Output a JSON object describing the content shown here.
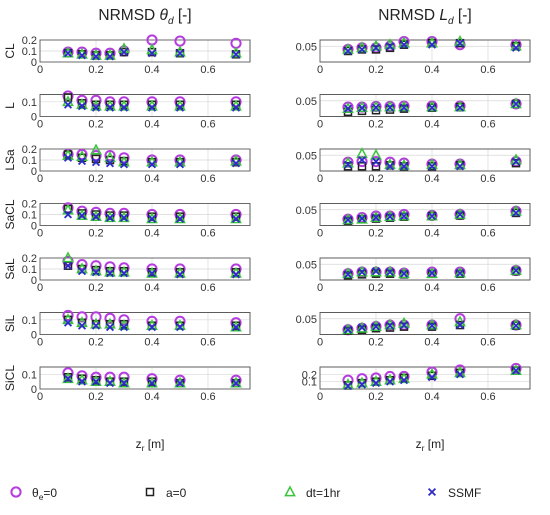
{
  "figure": {
    "legend": [
      {
        "id": "theta",
        "label": "θe=0",
        "label_main": "θ",
        "label_sub": "e",
        "label_rest": "=0",
        "marker": "circle",
        "color": "#B63CE0"
      },
      {
        "id": "a0",
        "label": "a=0",
        "marker": "square",
        "color": "#222222"
      },
      {
        "id": "dt",
        "label": "dt=1hr",
        "marker": "triangle",
        "color": "#39C43A"
      },
      {
        "id": "ssmf",
        "label": "SSMF",
        "marker": "x",
        "color": "#2B2BC8"
      }
    ]
  },
  "chart_data": [
    {
      "type": "scatter",
      "column_title": "NRMSD θd [-]",
      "title_main": "NRMSD ",
      "title_sym": "θ",
      "title_sub": "d",
      "title_rest": " [-]",
      "xlabel": "zr [m]",
      "xlabel_main": "z",
      "xlabel_sub": "r",
      "xlabel_rest": " [m]",
      "xlim": [
        0,
        0.75
      ],
      "xticks": [
        "0",
        "0.2",
        "0.4",
        "0.6"
      ],
      "x": [
        0.1,
        0.15,
        0.2,
        0.25,
        0.3,
        0.4,
        0.5,
        0.7
      ],
      "grid": true,
      "panels": [
        {
          "ylabel": "CL",
          "ylim": [
            0,
            0.2
          ],
          "yticks": [
            "0",
            "0.1",
            "0.2"
          ],
          "series": {
            "theta": [
              0.09,
              0.09,
              0.08,
              0.08,
              0.1,
              0.2,
              0.19,
              0.17
            ],
            "a0": [
              0.08,
              0.07,
              0.06,
              0.06,
              0.09,
              0.09,
              0.08,
              0.07
            ],
            "dt": [
              0.08,
              0.07,
              0.06,
              0.06,
              0.12,
              0.11,
              0.09,
              0.08
            ],
            "ssmf": [
              0.08,
              0.06,
              0.05,
              0.05,
              0.09,
              0.08,
              0.08,
              0.07
            ]
          }
        },
        {
          "ylabel": "L",
          "ylim": [
            0,
            0.15
          ],
          "yticks": [
            "0",
            "0.1"
          ],
          "series": {
            "theta": [
              0.14,
              0.11,
              0.11,
              0.1,
              0.1,
              0.1,
              0.1,
              0.1
            ],
            "a0": [
              0.13,
              0.09,
              0.08,
              0.08,
              0.08,
              0.08,
              0.08,
              0.08
            ],
            "dt": [
              0.1,
              0.08,
              0.07,
              0.07,
              0.07,
              0.07,
              0.07,
              0.07
            ],
            "ssmf": [
              0.08,
              0.07,
              0.06,
              0.06,
              0.06,
              0.06,
              0.06,
              0.06
            ]
          }
        },
        {
          "ylabel": "LSa",
          "ylim": [
            0,
            0.2
          ],
          "yticks": [
            "0",
            "0.1",
            "0.2"
          ],
          "series": {
            "theta": [
              0.15,
              0.15,
              0.14,
              0.14,
              0.12,
              0.1,
              0.1,
              0.1
            ],
            "a0": [
              0.15,
              0.12,
              0.11,
              0.1,
              0.09,
              0.08,
              0.08,
              0.08
            ],
            "dt": [
              0.14,
              0.13,
              0.19,
              0.12,
              0.08,
              0.08,
              0.08,
              0.09
            ],
            "ssmf": [
              0.12,
              0.09,
              0.08,
              0.07,
              0.06,
              0.06,
              0.06,
              0.07
            ]
          }
        },
        {
          "ylabel": "SaCL",
          "ylim": [
            0,
            0.2
          ],
          "yticks": [
            "0",
            "0.1",
            "0.2"
          ],
          "series": {
            "theta": [
              0.16,
              0.13,
              0.12,
              0.11,
              0.11,
              0.1,
              0.1,
              0.1
            ],
            "a0": [
              0.15,
              0.11,
              0.1,
              0.09,
              0.09,
              0.08,
              0.08,
              0.08
            ],
            "dt": [
              0.14,
              0.09,
              0.08,
              0.07,
              0.07,
              0.06,
              0.06,
              0.06
            ],
            "ssmf": [
              0.1,
              0.09,
              0.08,
              0.07,
              0.07,
              0.06,
              0.06,
              0.06
            ]
          }
        },
        {
          "ylabel": "SaL",
          "ylim": [
            0,
            0.2
          ],
          "yticks": [
            "0",
            "0.1",
            "0.2"
          ],
          "series": {
            "theta": [
              0.17,
              0.14,
              0.13,
              0.12,
              0.11,
              0.1,
              0.1,
              0.1
            ],
            "a0": [
              0.13,
              0.1,
              0.09,
              0.08,
              0.08,
              0.07,
              0.07,
              0.07
            ],
            "dt": [
              0.2,
              0.1,
              0.08,
              0.07,
              0.07,
              0.06,
              0.06,
              0.06
            ],
            "ssmf": [
              0.13,
              0.08,
              0.07,
              0.06,
              0.06,
              0.06,
              0.05,
              0.05
            ]
          }
        },
        {
          "ylabel": "SiL",
          "ylim": [
            0,
            0.15
          ],
          "yticks": [
            "0",
            "0.1"
          ],
          "series": {
            "theta": [
              0.13,
              0.12,
              0.12,
              0.11,
              0.1,
              0.09,
              0.09,
              0.08
            ],
            "a0": [
              0.1,
              0.08,
              0.07,
              0.07,
              0.07,
              0.06,
              0.06,
              0.06
            ],
            "dt": [
              0.1,
              0.08,
              0.07,
              0.07,
              0.06,
              0.06,
              0.06,
              0.05
            ],
            "ssmf": [
              0.08,
              0.06,
              0.06,
              0.05,
              0.05,
              0.05,
              0.05,
              0.05
            ]
          }
        },
        {
          "ylabel": "SiCL",
          "ylim": [
            0,
            0.15
          ],
          "yticks": [
            "0",
            "0.1"
          ],
          "series": {
            "theta": [
              0.11,
              0.09,
              0.08,
              0.08,
              0.08,
              0.07,
              0.06,
              0.06
            ],
            "a0": [
              0.08,
              0.07,
              0.06,
              0.05,
              0.05,
              0.05,
              0.04,
              0.04
            ],
            "dt": [
              0.07,
              0.06,
              0.05,
              0.05,
              0.04,
              0.04,
              0.04,
              0.04
            ],
            "ssmf": [
              0.07,
              0.05,
              0.05,
              0.04,
              0.04,
              0.04,
              0.04,
              0.04
            ]
          }
        }
      ]
    },
    {
      "type": "scatter",
      "column_title": "NRMSD Ld [-]",
      "title_main": "NRMSD ",
      "title_sym": "L",
      "title_sub": "d",
      "title_rest": " [-]",
      "xlabel": "zr [m]",
      "xlabel_main": "z",
      "xlabel_sub": "r",
      "xlabel_rest": " [m]",
      "xlim": [
        0,
        0.75
      ],
      "xticks": [
        "0",
        "0.2",
        "0.4",
        "0.6"
      ],
      "x": [
        0.1,
        0.15,
        0.2,
        0.25,
        0.3,
        0.4,
        0.5,
        0.7
      ],
      "grid": true,
      "panels": [
        {
          "ylabel": "",
          "ylim": [
            0,
            0.07
          ],
          "yticks": [
            "0.05"
          ],
          "series": {
            "theta": [
              0.04,
              0.045,
              0.045,
              0.05,
              0.065,
              0.065,
              0.055,
              0.055
            ],
            "a0": [
              0.035,
              0.04,
              0.04,
              0.045,
              0.055,
              0.06,
              0.06,
              0.05
            ],
            "dt": [
              0.04,
              0.045,
              0.05,
              0.055,
              0.06,
              0.06,
              0.065,
              0.05
            ],
            "ssmf": [
              0.035,
              0.04,
              0.045,
              0.05,
              0.055,
              0.055,
              0.06,
              0.045
            ]
          }
        },
        {
          "ylabel": "",
          "ylim": [
            0,
            0.07
          ],
          "yticks": [
            "0.05"
          ],
          "series": {
            "theta": [
              0.03,
              0.03,
              0.032,
              0.032,
              0.033,
              0.033,
              0.033,
              0.04
            ],
            "a0": [
              0.015,
              0.018,
              0.02,
              0.022,
              0.025,
              0.028,
              0.03,
              0.04
            ],
            "dt": [
              0.025,
              0.028,
              0.03,
              0.03,
              0.03,
              0.03,
              0.03,
              0.04
            ],
            "ssmf": [
              0.025,
              0.027,
              0.028,
              0.028,
              0.028,
              0.028,
              0.028,
              0.04
            ]
          }
        },
        {
          "ylabel": "",
          "ylim": [
            0,
            0.07
          ],
          "yticks": [
            "0.05"
          ],
          "series": {
            "theta": [
              0.028,
              0.03,
              0.03,
              0.028,
              0.025,
              0.022,
              0.022,
              0.03
            ],
            "a0": [
              0.015,
              0.015,
              0.015,
              0.018,
              0.015,
              0.015,
              0.018,
              0.025
            ],
            "dt": [
              0.025,
              0.055,
              0.05,
              0.02,
              0.018,
              0.02,
              0.02,
              0.035
            ],
            "ssmf": [
              0.02,
              0.035,
              0.03,
              0.015,
              0.015,
              0.015,
              0.015,
              0.03
            ]
          }
        },
        {
          "ylabel": "",
          "ylim": [
            0,
            0.07
          ],
          "yticks": [
            "0.05"
          ],
          "series": {
            "theta": [
              0.02,
              0.025,
              0.03,
              0.03,
              0.035,
              0.032,
              0.035,
              0.045
            ],
            "a0": [
              0.015,
              0.02,
              0.022,
              0.025,
              0.028,
              0.03,
              0.032,
              0.04
            ],
            "dt": [
              0.018,
              0.02,
              0.025,
              0.028,
              0.03,
              0.03,
              0.035,
              0.045
            ],
            "ssmf": [
              0.018,
              0.022,
              0.025,
              0.028,
              0.03,
              0.03,
              0.035,
              0.04
            ]
          }
        },
        {
          "ylabel": "",
          "ylim": [
            0,
            0.07
          ],
          "yticks": [
            "0.05"
          ],
          "series": {
            "theta": [
              0.02,
              0.025,
              0.025,
              0.025,
              0.022,
              0.025,
              0.025,
              0.03
            ],
            "a0": [
              0.015,
              0.018,
              0.02,
              0.02,
              0.018,
              0.02,
              0.02,
              0.028
            ],
            "dt": [
              0.02,
              0.025,
              0.025,
              0.025,
              0.02,
              0.02,
              0.022,
              0.03
            ],
            "ssmf": [
              0.018,
              0.025,
              0.028,
              0.025,
              0.02,
              0.022,
              0.022,
              0.03
            ]
          }
        },
        {
          "ylabel": "",
          "ylim": [
            0,
            0.07
          ],
          "yticks": [
            "0.05"
          ],
          "series": {
            "theta": [
              0.015,
              0.02,
              0.025,
              0.03,
              0.03,
              0.03,
              0.05,
              0.03
            ],
            "a0": [
              0.012,
              0.015,
              0.02,
              0.022,
              0.025,
              0.025,
              0.03,
              0.028
            ],
            "dt": [
              0.015,
              0.02,
              0.025,
              0.03,
              0.035,
              0.03,
              0.04,
              0.03
            ],
            "ssmf": [
              0.015,
              0.022,
              0.025,
              0.028,
              0.03,
              0.028,
              0.03,
              0.028
            ]
          }
        },
        {
          "ylabel": "",
          "ylim": [
            0,
            0.3
          ],
          "yticks": [
            "0.1",
            "0.2"
          ],
          "series": {
            "theta": [
              0.12,
              0.14,
              0.15,
              0.17,
              0.17,
              0.23,
              0.26,
              0.28
            ],
            "a0": [
              0.05,
              0.08,
              0.1,
              0.12,
              0.15,
              0.18,
              0.22,
              0.25
            ],
            "dt": [
              0.06,
              0.08,
              0.1,
              0.12,
              0.14,
              0.2,
              0.22,
              0.25
            ],
            "ssmf": [
              0.04,
              0.06,
              0.08,
              0.1,
              0.12,
              0.16,
              0.2,
              0.25
            ]
          }
        }
      ]
    }
  ]
}
